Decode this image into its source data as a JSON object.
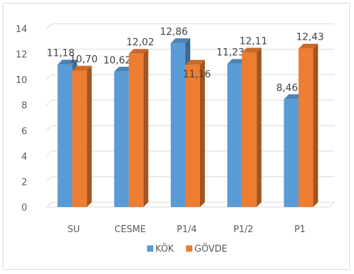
{
  "chart_data": {
    "type": "bar",
    "categories": [
      "SU",
      "CESME",
      "P1/4",
      "P1/2",
      "P1"
    ],
    "series": [
      {
        "name": "KÖK",
        "values": [
          11.18,
          10.62,
          12.86,
          11.23,
          8.46
        ],
        "labels": [
          "11,18",
          "10,62",
          "12,86",
          "11,23",
          "8,46"
        ],
        "color": "#5b9bd5"
      },
      {
        "name": "GÖVDE",
        "values": [
          10.7,
          12.02,
          11.16,
          12.11,
          12.43
        ],
        "labels": [
          "10,70",
          "12,02",
          "11,16",
          "12,11",
          "12,43"
        ],
        "color": "#ed7d31"
      }
    ],
    "yticks": [
      "0",
      "2",
      "4",
      "6",
      "8",
      "10",
      "12",
      "14"
    ],
    "ylim": [
      0,
      14
    ],
    "grid": true,
    "three_d": true,
    "legend_position": "bottom"
  }
}
